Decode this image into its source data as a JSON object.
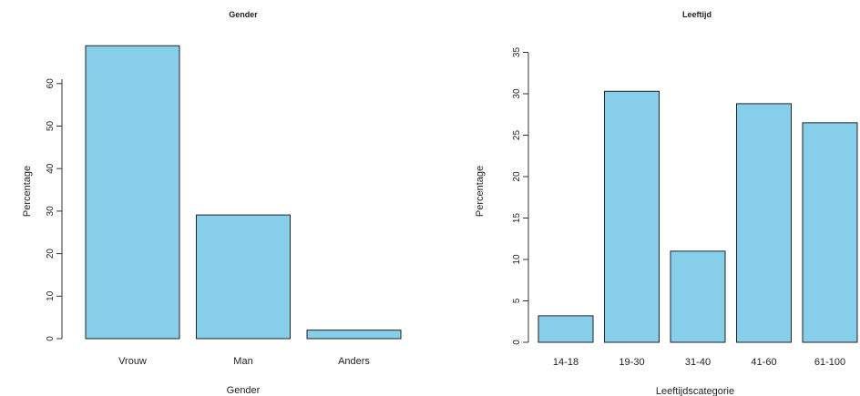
{
  "colors": {
    "bar_fill": "#87CEEB",
    "bar_stroke": "#222222",
    "axis": "#333333"
  },
  "chart_data": [
    {
      "type": "bar",
      "title": "Gender",
      "xlabel": "Gender",
      "ylabel": "Percentage",
      "categories": [
        "Vrouw",
        "Man",
        "Anders"
      ],
      "values": [
        68.9,
        29.1,
        2.0
      ],
      "ylim": [
        0,
        70
      ],
      "yticks": [
        0,
        10,
        20,
        30,
        40,
        50,
        60
      ],
      "ytick_labels": [
        "0",
        "10",
        "20",
        "30",
        "40",
        "50",
        "60"
      ],
      "grid": false,
      "legend": false
    },
    {
      "type": "bar",
      "title": "Leeftijd",
      "xlabel": "Leeftijdscategorie",
      "ylabel": "Percentage",
      "categories": [
        "14-18",
        "19-30",
        "31-40",
        "41-60",
        "61-100"
      ],
      "values": [
        3.2,
        30.3,
        11.0,
        28.8,
        26.5
      ],
      "ylim": [
        0,
        35
      ],
      "yticks": [
        0,
        5,
        10,
        15,
        20,
        25,
        30,
        35
      ],
      "ytick_labels": [
        "0",
        "5",
        "10",
        "15",
        "20",
        "25",
        "30",
        "35"
      ],
      "grid": false,
      "legend": false
    }
  ]
}
